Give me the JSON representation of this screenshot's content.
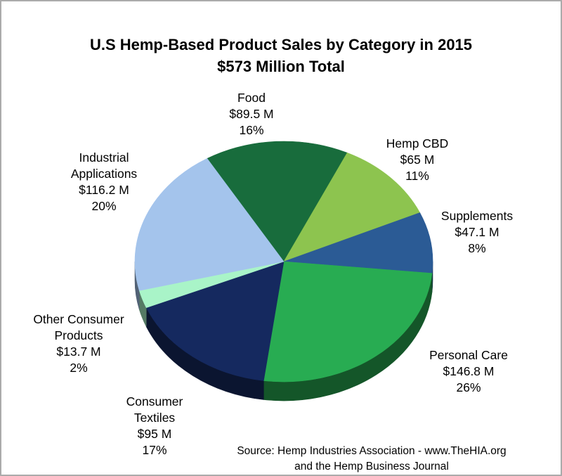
{
  "frame": {
    "border_color": "#ABABAB",
    "background": "#FFFFFF"
  },
  "title": {
    "line1": "U.S Hemp-Based Product Sales by Category in 2015",
    "line2": "$573 Million Total"
  },
  "source": {
    "line1": "Source: Hemp Industries Association - www.TheHIA.org",
    "line2": "and the Hemp Business Journal"
  },
  "chart_data": {
    "type": "pie",
    "style": "3d",
    "title": "U.S Hemp-Based Product Sales by Category in 2015",
    "subtitle": "$573 Million Total",
    "total_value_million_usd": 573,
    "units": "million USD",
    "start_angle_deg": 121,
    "direction": "clockwise",
    "slices": [
      {
        "label": "Food",
        "value": 89.5,
        "value_label": "$89.5 M",
        "pct": 16,
        "pct_label": "16%",
        "color": "#186C3C"
      },
      {
        "label": "Hemp CBD",
        "value": 65,
        "value_label": "$65 M",
        "pct": 11,
        "pct_label": "11%",
        "color": "#8DC44F"
      },
      {
        "label": "Supplements",
        "value": 47.1,
        "value_label": "$47.1 M",
        "pct": 8,
        "pct_label": "8%",
        "color": "#2B5B95"
      },
      {
        "label": "Personal Care",
        "value": 146.8,
        "value_label": "$146.8 M",
        "pct": 26,
        "pct_label": "26%",
        "color": "#28AC52"
      },
      {
        "label": "Consumer Textiles",
        "value": 95,
        "value_label": "$95 M",
        "pct": 17,
        "pct_label": "17%",
        "color": "#15295F"
      },
      {
        "label": "Other Consumer Products",
        "value": 13.7,
        "value_label": "$13.7 M",
        "pct": 2,
        "pct_label": "2%",
        "color": "#A9F4C8"
      },
      {
        "label": "Industrial Applications",
        "value": 116.2,
        "value_label": "$116.2 M",
        "pct": 20,
        "pct_label": "20%",
        "color": "#A4C4EC"
      }
    ]
  },
  "callouts": [
    {
      "id": "food",
      "lines": [
        "Food",
        "$89.5 M",
        "16%"
      ]
    },
    {
      "id": "hemp-cbd",
      "lines": [
        "Hemp CBD",
        "$65 M",
        "11%"
      ]
    },
    {
      "id": "supplements",
      "lines": [
        "Supplements",
        "$47.1 M",
        "8%"
      ]
    },
    {
      "id": "personal",
      "lines": [
        "Personal Care",
        "$146.8 M",
        "26%"
      ]
    },
    {
      "id": "textiles",
      "lines": [
        "Consumer",
        "Textiles",
        "$95 M",
        "17%"
      ]
    },
    {
      "id": "other",
      "lines": [
        "Other Consumer",
        "Products",
        "$13.7 M",
        "2%"
      ]
    },
    {
      "id": "industrial",
      "lines": [
        "Industrial",
        "Applications",
        "$116.2 M",
        "20%"
      ]
    }
  ]
}
